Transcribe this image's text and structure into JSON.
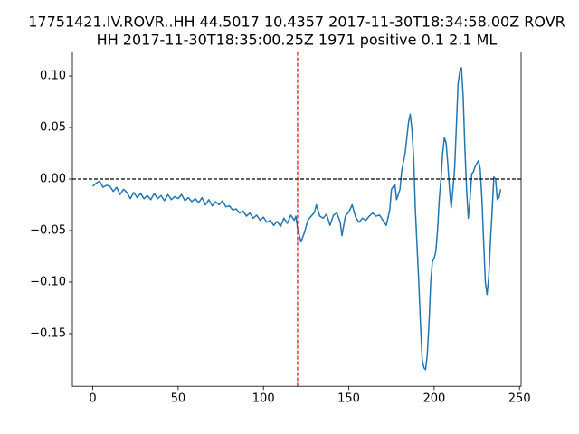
{
  "chart_data": {
    "type": "line",
    "title": [
      "17751421.IV.ROVR..HH 44.5017 10.4357 2017-11-30T18:34:58.00Z ROVR",
      "HH 2017-11-30T18:35:00.25Z 1971 positive 0.1 2.1 ML"
    ],
    "x": [
      0,
      2,
      4,
      6,
      8,
      10,
      12,
      14,
      16,
      18,
      20,
      22,
      24,
      26,
      28,
      30,
      32,
      34,
      36,
      38,
      40,
      42,
      44,
      46,
      48,
      50,
      52,
      54,
      56,
      58,
      60,
      62,
      64,
      66,
      68,
      70,
      72,
      74,
      76,
      78,
      80,
      82,
      84,
      86,
      88,
      90,
      92,
      94,
      96,
      98,
      100,
      102,
      104,
      106,
      108,
      110,
      112,
      114,
      116,
      118,
      119,
      120,
      122,
      124,
      126,
      128,
      130,
      131,
      133,
      135,
      137,
      139,
      141,
      143,
      145,
      146,
      148,
      150,
      152,
      154,
      156,
      158,
      160,
      162,
      164,
      166,
      168,
      170,
      172,
      174,
      175,
      177,
      178,
      180,
      181,
      183,
      184,
      185,
      186,
      187,
      188,
      189,
      190,
      191,
      192,
      193,
      194,
      195,
      196,
      197,
      198,
      199,
      200,
      201,
      202,
      203,
      204,
      205,
      206,
      207,
      208,
      209,
      210,
      211,
      212,
      213,
      214,
      215,
      216,
      217,
      218,
      219,
      220,
      221,
      222,
      223,
      224,
      225,
      226,
      227,
      228,
      229,
      230,
      231,
      232,
      233,
      234,
      235,
      236,
      237,
      238,
      239
    ],
    "series": [
      {
        "color": "#1f77b4",
        "values": [
          -0.007,
          -0.004,
          -0.002,
          -0.008,
          -0.006,
          -0.007,
          -0.012,
          -0.008,
          -0.015,
          -0.01,
          -0.013,
          -0.019,
          -0.013,
          -0.018,
          -0.014,
          -0.019,
          -0.016,
          -0.02,
          -0.014,
          -0.019,
          -0.016,
          -0.021,
          -0.015,
          -0.02,
          -0.017,
          -0.019,
          -0.015,
          -0.021,
          -0.018,
          -0.022,
          -0.019,
          -0.023,
          -0.018,
          -0.025,
          -0.02,
          -0.026,
          -0.022,
          -0.025,
          -0.021,
          -0.027,
          -0.026,
          -0.03,
          -0.029,
          -0.033,
          -0.031,
          -0.036,
          -0.033,
          -0.038,
          -0.035,
          -0.04,
          -0.037,
          -0.042,
          -0.04,
          -0.045,
          -0.041,
          -0.046,
          -0.038,
          -0.043,
          -0.035,
          -0.04,
          -0.036,
          -0.048,
          -0.061,
          -0.052,
          -0.04,
          -0.036,
          -0.032,
          -0.025,
          -0.036,
          -0.038,
          -0.034,
          -0.045,
          -0.035,
          -0.033,
          -0.042,
          -0.055,
          -0.036,
          -0.032,
          -0.025,
          -0.037,
          -0.042,
          -0.038,
          -0.04,
          -0.036,
          -0.033,
          -0.036,
          -0.035,
          -0.04,
          -0.045,
          -0.03,
          -0.01,
          -0.005,
          -0.02,
          -0.01,
          0.008,
          0.025,
          0.04,
          0.055,
          0.063,
          0.048,
          0.02,
          -0.03,
          -0.065,
          -0.1,
          -0.14,
          -0.175,
          -0.183,
          -0.185,
          -0.17,
          -0.14,
          -0.1,
          -0.08,
          -0.077,
          -0.07,
          -0.05,
          -0.02,
          0.0,
          0.025,
          0.04,
          0.035,
          0.015,
          -0.01,
          -0.028,
          -0.01,
          0.01,
          0.05,
          0.092,
          0.104,
          0.108,
          0.08,
          0.03,
          -0.01,
          -0.038,
          -0.02,
          0.005,
          0.007,
          0.012,
          0.015,
          0.018,
          0.01,
          -0.02,
          -0.06,
          -0.1,
          -0.112,
          -0.095,
          -0.06,
          -0.03,
          0.002,
          0.0,
          -0.02,
          -0.018,
          -0.01
        ]
      }
    ],
    "xlim": [
      -11.95,
      250.95
    ],
    "xticks": [
      0,
      50,
      100,
      150,
      200,
      250
    ],
    "ylim": [
      -0.2011,
      0.1232
    ],
    "yticks": [
      {
        "value": -0.15,
        "label": "−0.15"
      },
      {
        "value": -0.1,
        "label": "−0.10"
      },
      {
        "value": -0.05,
        "label": "−0.05"
      },
      {
        "value": 0,
        "label": "0.00"
      },
      {
        "value": 0.05,
        "label": "0.05"
      },
      {
        "value": 0.1,
        "label": "0.10"
      }
    ],
    "vline": {
      "x": 120,
      "color": "#ff0000"
    },
    "hline": {
      "y": 0,
      "color": "#000000"
    },
    "grid": false
  }
}
